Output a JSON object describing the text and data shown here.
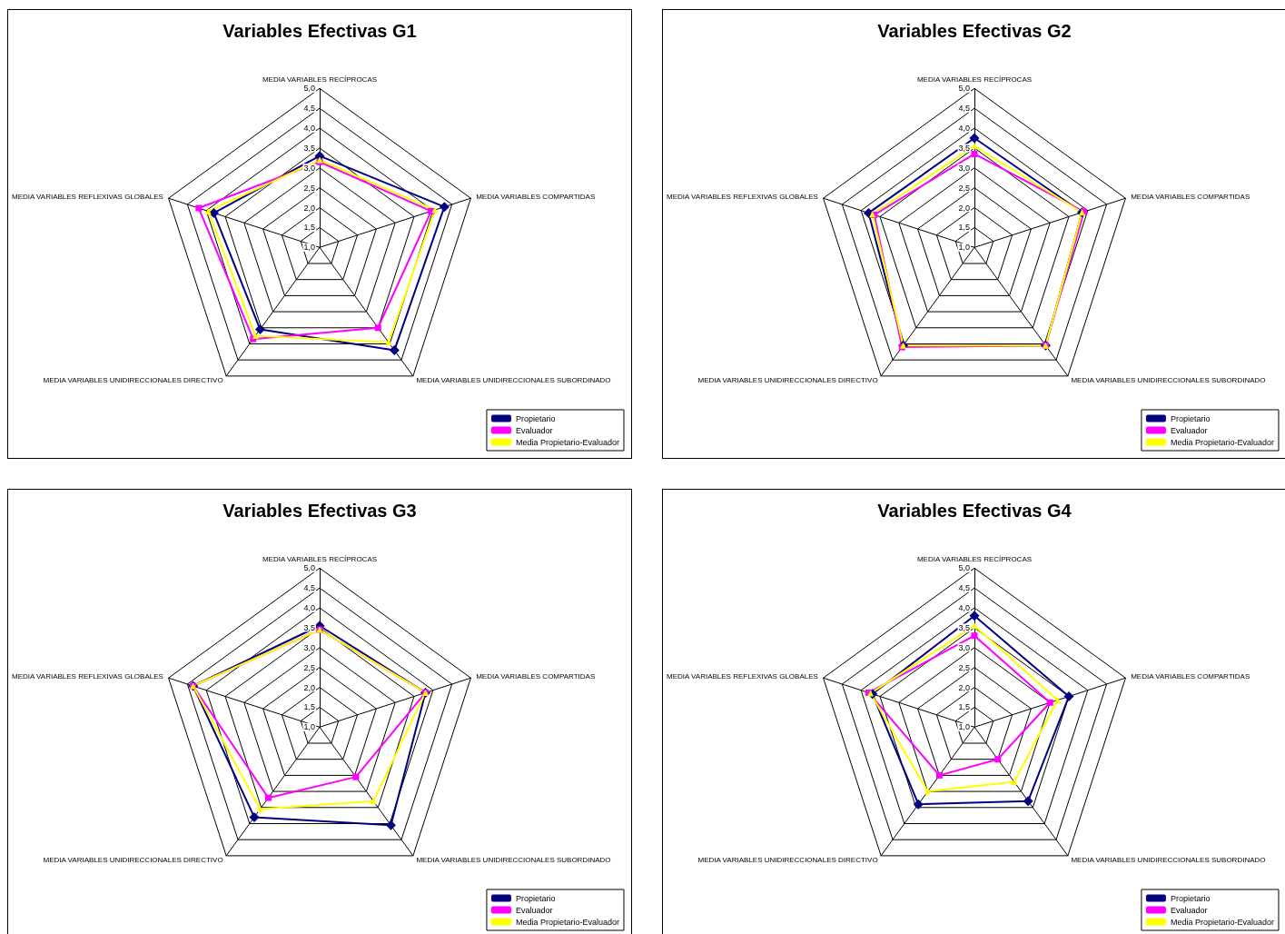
{
  "chart_data": [
    {
      "type": "radar",
      "title": "Variables Efectivas G1",
      "categories": [
        "MEDIA VARIABLES RECÍPROCAS",
        "MEDIA VARIABLES COMPARTIDAS",
        "MEDIA VARIABLES UNIDIRECCIONALES SUBORDINADO",
        "MEDIA VARIABLES UNIDIRECCIONALES DIRECTIVO",
        "MEDIA VARIABLES REFLEXIVAS GLOBALES"
      ],
      "ylim": [
        1,
        5
      ],
      "yticks": [
        {
          "value": 1,
          "label": "1,0"
        },
        {
          "value": 1.5,
          "label": "1,5"
        },
        {
          "value": 2,
          "label": "2,0"
        },
        {
          "value": 2.5,
          "label": "2,5"
        },
        {
          "value": 3,
          "label": "3,0"
        },
        {
          "value": 3.5,
          "label": "3,5"
        },
        {
          "value": 4,
          "label": "4,0"
        },
        {
          "value": 4.5,
          "label": "4,5"
        },
        {
          "value": 5,
          "label": "5,0"
        }
      ],
      "legend": "bottom right",
      "series": [
        {
          "name": "Propietario",
          "color": "#000080",
          "marker": "diamond",
          "values": [
            3.3,
            4.3,
            4.2,
            3.55,
            3.8
          ]
        },
        {
          "name": "Evaluador",
          "color": "#ff00ff",
          "marker": "square",
          "values": [
            3.15,
            3.95,
            3.5,
            3.85,
            4.2
          ]
        },
        {
          "name": "Media Propietario-Evaluador",
          "color": "#ffff00",
          "marker": "triangle",
          "values": [
            3.2,
            4.05,
            3.95,
            3.75,
            3.95
          ]
        }
      ]
    },
    {
      "type": "radar",
      "title": "Variables Efectivas G2",
      "categories": [
        "MEDIA VARIABLES RECÍPROCAS",
        "MEDIA VARIABLES COMPARTIDAS",
        "MEDIA VARIABLES UNIDIRECCIONALES SUBORDINADO",
        "MEDIA VARIABLES UNIDIRECCIONALES DIRECTIVO",
        "MEDIA VARIABLES REFLEXIVAS GLOBALES"
      ],
      "ylim": [
        1,
        5
      ],
      "yticks": [
        {
          "value": 1,
          "label": "1,0"
        },
        {
          "value": 1.5,
          "label": "1,5"
        },
        {
          "value": 2,
          "label": "2,0"
        },
        {
          "value": 2.5,
          "label": "2,5"
        },
        {
          "value": 3,
          "label": "3,0"
        },
        {
          "value": 3.5,
          "label": "3,5"
        },
        {
          "value": 4,
          "label": "4,0"
        },
        {
          "value": 4.5,
          "label": "4,5"
        },
        {
          "value": 5,
          "label": "5,0"
        }
      ],
      "legend": "bottom right",
      "series": [
        {
          "name": "Propietario",
          "color": "#000080",
          "marker": "diamond",
          "values": [
            3.75,
            3.85,
            4.05,
            4.05,
            3.8
          ]
        },
        {
          "name": "Evaluador",
          "color": "#ff00ff",
          "marker": "square",
          "values": [
            3.35,
            3.9,
            4.05,
            4.1,
            3.65
          ]
        },
        {
          "name": "Media Propietario-Evaluador",
          "color": "#ffff00",
          "marker": "triangle",
          "values": [
            3.55,
            3.85,
            4.05,
            4.05,
            3.7
          ]
        }
      ]
    },
    {
      "type": "radar",
      "title": "Variables Efectivas G3",
      "categories": [
        "MEDIA VARIABLES RECÍPROCAS",
        "MEDIA VARIABLES COMPARTIDAS",
        "MEDIA VARIABLES UNIDIRECCIONALES SUBORDINADO",
        "MEDIA VARIABLES UNIDIRECCIONALES DIRECTIVO",
        "MEDIA VARIABLES REFLEXIVAS GLOBALES"
      ],
      "ylim": [
        1,
        5
      ],
      "yticks": [
        {
          "value": 1,
          "label": "1,0"
        },
        {
          "value": 1.5,
          "label": "1,5"
        },
        {
          "value": 2,
          "label": "2,0"
        },
        {
          "value": 2.5,
          "label": "2,5"
        },
        {
          "value": 3,
          "label": "3,0"
        },
        {
          "value": 3.5,
          "label": "3,5"
        },
        {
          "value": 4,
          "label": "4,0"
        },
        {
          "value": 4.5,
          "label": "4,5"
        },
        {
          "value": 5,
          "label": "5,0"
        }
      ],
      "legend": "bottom right",
      "series": [
        {
          "name": "Propietario",
          "color": "#000080",
          "marker": "diamond",
          "values": [
            3.55,
            3.8,
            4.05,
            3.8,
            4.35
          ]
        },
        {
          "name": "Evaluador",
          "color": "#ff00ff",
          "marker": "square",
          "values": [
            3.45,
            3.8,
            2.55,
            3.2,
            4.35
          ]
        },
        {
          "name": "Media Propietario-Evaluador",
          "color": "#ffff00",
          "marker": "triangle",
          "values": [
            3.45,
            3.8,
            3.3,
            3.55,
            4.35
          ]
        }
      ]
    },
    {
      "type": "radar",
      "title": "Variables Efectivas G4",
      "categories": [
        "MEDIA VARIABLES RECÍPROCAS",
        "MEDIA VARIABLES COMPARTIDAS",
        "MEDIA VARIABLES UNIDIRECCIONALES SUBORDINADO",
        "MEDIA VARIABLES UNIDIRECCIONALES DIRECTIVO",
        "MEDIA VARIABLES REFLEXIVAS GLOBALES"
      ],
      "ylim": [
        1,
        5
      ],
      "yticks": [
        {
          "value": 1,
          "label": "1,0"
        },
        {
          "value": 1.5,
          "label": "1,5"
        },
        {
          "value": 2,
          "label": "2,0"
        },
        {
          "value": 2.5,
          "label": "2,5"
        },
        {
          "value": 3,
          "label": "3,0"
        },
        {
          "value": 3.5,
          "label": "3,5"
        },
        {
          "value": 4,
          "label": "4,0"
        },
        {
          "value": 4.5,
          "label": "4,5"
        },
        {
          "value": 5,
          "label": "5,0"
        }
      ],
      "legend": "bottom right",
      "series": [
        {
          "name": "Propietario",
          "color": "#000080",
          "marker": "diamond",
          "values": [
            3.8,
            3.5,
            3.3,
            3.4,
            3.7
          ]
        },
        {
          "name": "Evaluador",
          "color": "#ff00ff",
          "marker": "square",
          "values": [
            3.3,
            3.0,
            2.0,
            2.5,
            3.8
          ]
        },
        {
          "name": "Media Propietario-Evaluador",
          "color": "#ffff00",
          "marker": "triangle",
          "values": [
            3.55,
            3.2,
            2.7,
            3.0,
            3.75
          ]
        }
      ]
    }
  ]
}
